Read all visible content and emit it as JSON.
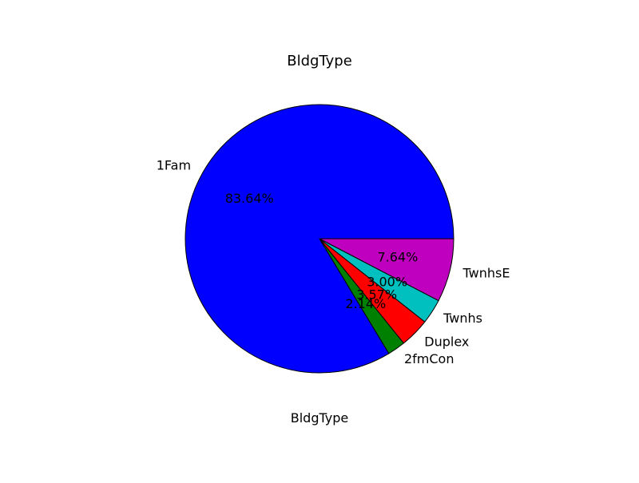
{
  "chart_data": {
    "type": "pie",
    "title": "BldgType",
    "xlabel": "BldgType",
    "categories": [
      "1Fam",
      "2fmCon",
      "Duplex",
      "Twnhs",
      "TwnhsE"
    ],
    "values": [
      83.64,
      2.14,
      3.57,
      3.0,
      7.64
    ],
    "value_labels": [
      "83.64%",
      "2.14%",
      "3.57%",
      "3.00%",
      "7.64%"
    ],
    "colors": [
      "#0000ff",
      "#008000",
      "#ff0000",
      "#00bfbf",
      "#bf00bf"
    ],
    "start_angle_deg": 0,
    "direction": "counterclockwise",
    "legend": "none",
    "grid": false
  }
}
